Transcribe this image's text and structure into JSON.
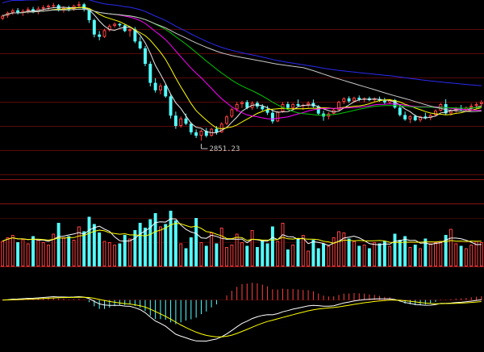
{
  "chart_data": {
    "type": "candlestick",
    "title": "",
    "panels": {
      "price": {
        "ylim": [
          2700,
          3340
        ],
        "low_annotation": "2851.23",
        "low_value": 2851.23,
        "colors": {
          "up": "#ff4040",
          "down": "#54ffff",
          "ma5": "#e8e8e8",
          "ma10": "#ffff00",
          "ma20": "#ff00ff",
          "ma30": "#00c800",
          "ma60": "#c8c8c8",
          "ma120": "#2a2af0"
        }
      },
      "volume": {
        "ylim": [
          0,
          100
        ],
        "colors": {
          "up": "#ff4040",
          "down": "#54ffff",
          "ma5": "#ffffff",
          "ma10": "#ffff00"
        }
      },
      "macd": {
        "ylim": [
          -130,
          80
        ],
        "colors": {
          "dif": "#ffffff",
          "dea": "#ffff00",
          "pos": "#ff4040",
          "neg": "#54ffff"
        }
      }
    },
    "ohlc": [
      [
        3275,
        3290,
        3270,
        3285
      ],
      [
        3285,
        3300,
        3278,
        3296
      ],
      [
        3296,
        3310,
        3288,
        3304
      ],
      [
        3304,
        3312,
        3290,
        3295
      ],
      [
        3295,
        3308,
        3285,
        3302
      ],
      [
        3302,
        3315,
        3292,
        3308
      ],
      [
        3308,
        3316,
        3294,
        3300
      ],
      [
        3300,
        3318,
        3290,
        3310
      ],
      [
        3310,
        3322,
        3300,
        3315
      ],
      [
        3315,
        3325,
        3305,
        3320
      ],
      [
        3320,
        3330,
        3312,
        3322
      ],
      [
        3322,
        3326,
        3300,
        3305
      ],
      [
        3305,
        3318,
        3296,
        3312
      ],
      [
        3312,
        3320,
        3300,
        3308
      ],
      [
        3308,
        3324,
        3302,
        3320
      ],
      [
        3320,
        3335,
        3314,
        3325
      ],
      [
        3325,
        3330,
        3300,
        3308
      ],
      [
        3308,
        3310,
        3260,
        3270
      ],
      [
        3270,
        3275,
        3210,
        3220
      ],
      [
        3220,
        3232,
        3200,
        3212
      ],
      [
        3212,
        3240,
        3208,
        3235
      ],
      [
        3235,
        3256,
        3230,
        3250
      ],
      [
        3250,
        3262,
        3244,
        3257
      ],
      [
        3257,
        3260,
        3246,
        3252
      ],
      [
        3252,
        3255,
        3228,
        3232
      ],
      [
        3232,
        3242,
        3212,
        3238
      ],
      [
        3238,
        3246,
        3190,
        3196
      ],
      [
        3196,
        3212,
        3168,
        3172
      ],
      [
        3172,
        3180,
        3110,
        3118
      ],
      [
        3118,
        3126,
        3040,
        3052
      ],
      [
        3052,
        3068,
        3018,
        3026
      ],
      [
        3026,
        3050,
        3012,
        3042
      ],
      [
        3042,
        3048,
        3000,
        3005
      ],
      [
        3005,
        3012,
        2928,
        2938
      ],
      [
        2938,
        2952,
        2892,
        2902
      ],
      [
        2902,
        2935,
        2896,
        2928
      ],
      [
        2928,
        2945,
        2905,
        2910
      ],
      [
        2910,
        2915,
        2872,
        2880
      ],
      [
        2880,
        2890,
        2860,
        2868
      ],
      [
        2868,
        2890,
        2851,
        2885
      ],
      [
        2885,
        2895,
        2862,
        2868
      ],
      [
        2868,
        2896,
        2865,
        2892
      ],
      [
        2892,
        2902,
        2872,
        2880
      ],
      [
        2880,
        2915,
        2878,
        2910
      ],
      [
        2910,
        2940,
        2905,
        2935
      ],
      [
        2935,
        2965,
        2930,
        2960
      ],
      [
        2960,
        2985,
        2952,
        2978
      ],
      [
        2978,
        2990,
        2965,
        2985
      ],
      [
        2985,
        2992,
        2960,
        2965
      ],
      [
        2965,
        2988,
        2958,
        2982
      ],
      [
        2982,
        2988,
        2962,
        2970
      ],
      [
        2970,
        2978,
        2955,
        2960
      ],
      [
        2960,
        2972,
        2940,
        2948
      ],
      [
        2948,
        2960,
        2910,
        2918
      ],
      [
        2918,
        2955,
        2915,
        2952
      ],
      [
        2952,
        2985,
        2948,
        2978
      ],
      [
        2978,
        2986,
        2960,
        2965
      ],
      [
        2965,
        2982,
        2960,
        2978
      ],
      [
        2978,
        2994,
        2968,
        2972
      ],
      [
        2972,
        2980,
        2958,
        2975
      ],
      [
        2975,
        2988,
        2965,
        2982
      ],
      [
        2982,
        2994,
        2966,
        2970
      ],
      [
        2970,
        2975,
        2940,
        2945
      ],
      [
        2945,
        2955,
        2920,
        2935
      ],
      [
        2935,
        2950,
        2925,
        2945
      ],
      [
        2945,
        2962,
        2940,
        2958
      ],
      [
        2958,
        2990,
        2955,
        2986
      ],
      [
        2986,
        3002,
        2978,
        2998
      ],
      [
        2998,
        3005,
        2982,
        2988
      ],
      [
        2988,
        3004,
        2984,
        3000
      ],
      [
        3000,
        3008,
        2988,
        2994
      ],
      [
        2994,
        3002,
        2985,
        2998
      ],
      [
        2998,
        3004,
        2988,
        2992
      ],
      [
        2992,
        3002,
        2984,
        2996
      ],
      [
        2996,
        3004,
        2986,
        2990
      ],
      [
        2990,
        3000,
        2978,
        2984
      ],
      [
        2984,
        2996,
        2978,
        2992
      ],
      [
        2992,
        2996,
        2962,
        2966
      ],
      [
        2966,
        2972,
        2935,
        2940
      ],
      [
        2940,
        2952,
        2920,
        2925
      ],
      [
        2925,
        2940,
        2912,
        2936
      ],
      [
        2936,
        2942,
        2918,
        2922
      ],
      [
        2922,
        2938,
        2915,
        2935
      ],
      [
        2935,
        2948,
        2925,
        2930
      ],
      [
        2930,
        2944,
        2922,
        2940
      ],
      [
        2940,
        2960,
        2935,
        2955
      ],
      [
        2955,
        2982,
        2952,
        2978
      ],
      [
        2978,
        2995,
        2940,
        2946
      ],
      [
        2946,
        2960,
        2938,
        2955
      ],
      [
        2955,
        2968,
        2948,
        2962
      ],
      [
        2962,
        2975,
        2954,
        2958
      ],
      [
        2958,
        2970,
        2950,
        2966
      ],
      [
        2966,
        2980,
        2958,
        2972
      ],
      [
        2972,
        2984,
        2962,
        2978
      ],
      [
        2978,
        2992,
        2968,
        2985
      ]
    ],
    "volume": [
      42,
      48,
      52,
      40,
      45,
      38,
      50,
      44,
      40,
      36,
      54,
      72,
      48,
      50,
      44,
      66,
      58,
      82,
      70,
      56,
      42,
      40,
      36,
      38,
      52,
      46,
      60,
      72,
      64,
      78,
      88,
      66,
      70,
      92,
      76,
      38,
      30,
      48,
      80,
      40,
      34,
      56,
      38,
      64,
      32,
      36,
      54,
      40,
      34,
      60,
      32,
      44,
      38,
      66,
      42,
      72,
      28,
      36,
      46,
      52,
      26,
      44,
      30,
      38,
      34,
      48,
      58,
      56,
      46,
      42,
      34,
      36,
      30,
      40,
      38,
      42,
      34,
      54,
      44,
      50,
      32,
      36,
      30,
      46,
      38,
      40,
      42,
      52,
      62,
      38,
      34,
      30,
      36,
      42,
      40
    ]
  }
}
